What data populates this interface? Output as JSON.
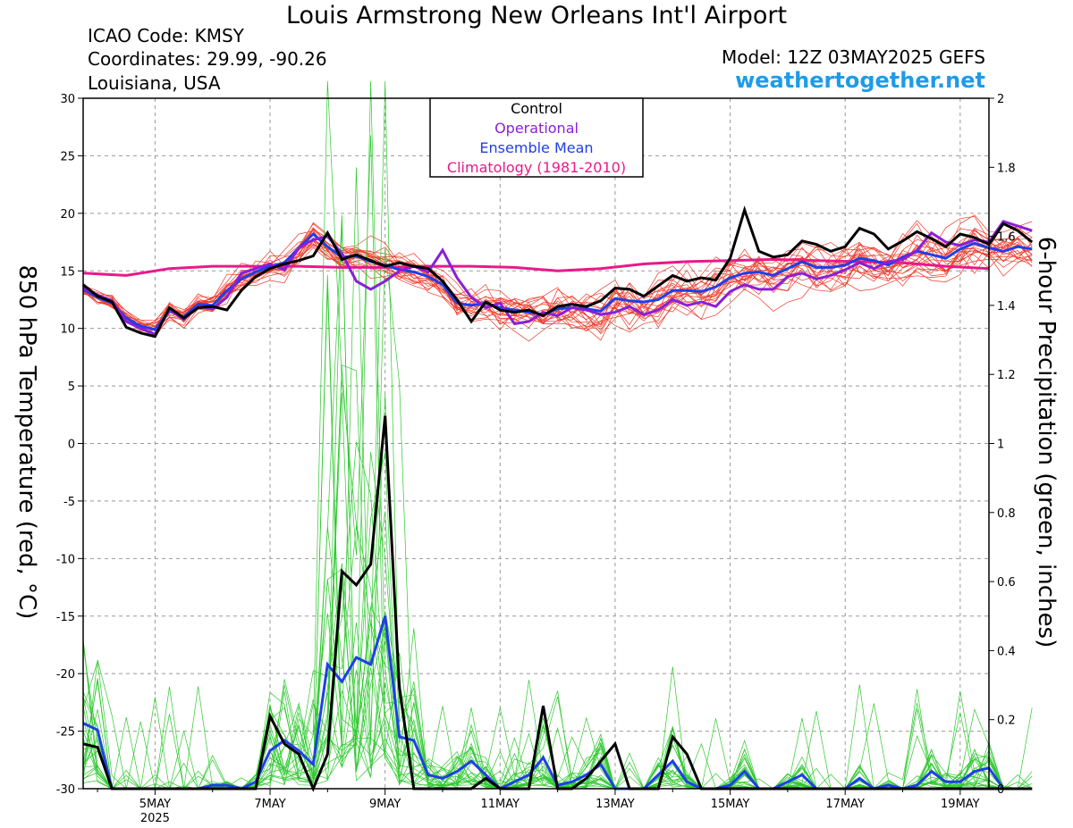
{
  "header": {
    "title": "Louis Armstrong New Orleans Int'l Airport",
    "icao": "ICAO Code: KMSY",
    "coordinates": "Coordinates: 29.99, -90.26",
    "region": "Louisiana, USA",
    "model": "Model: 12Z 03MAY2025 GEFS",
    "site": "weathertogether.net",
    "site_color": "#1e9be8"
  },
  "chart_data": {
    "type": "line",
    "ylabel": "850 hPa Temperature (red, °C)",
    "y2label": "6-hour Precipitation (green, inches)",
    "ylim": [
      -30,
      30
    ],
    "yticks": [
      30,
      25,
      20,
      15,
      10,
      5,
      0,
      -5,
      -10,
      -15,
      -20,
      -25,
      -30
    ],
    "y2lim": [
      0,
      2
    ],
    "y2ticks": [
      "2",
      "1.8",
      "1.6",
      "1.4",
      "1.2",
      "1",
      "0.8",
      "0.6",
      "0.4",
      "0.2",
      "0"
    ],
    "xlim_day": [
      3.75,
      19.5
    ],
    "xticks": [
      {
        "day": 5,
        "label": "5MAY",
        "sub": "2025"
      },
      {
        "day": 7,
        "label": "7MAY",
        "sub": ""
      },
      {
        "day": 9,
        "label": "9MAY",
        "sub": ""
      },
      {
        "day": 11,
        "label": "11MAY",
        "sub": ""
      },
      {
        "day": 13,
        "label": "13MAY",
        "sub": ""
      },
      {
        "day": 15,
        "label": "15MAY",
        "sub": ""
      },
      {
        "day": 17,
        "label": "17MAY",
        "sub": ""
      },
      {
        "day": 19,
        "label": "19MAY",
        "sub": ""
      }
    ],
    "legend": {
      "placement": "top-center",
      "entries": [
        {
          "label": "Control",
          "color": "#000000"
        },
        {
          "label": "Operational",
          "color": "#8a1fd8"
        },
        {
          "label": "Ensemble Mean",
          "color": "#1f3fe8"
        },
        {
          "label": "Climatology (1981-2010)",
          "color": "#e81a8a"
        }
      ]
    },
    "colors": {
      "members_temp": "#ee3a2a",
      "members_precip": "#2ec82e",
      "control": "#000000",
      "operational": "#8a1fd8",
      "mean": "#1f3fe8",
      "climatology": "#e81a8a"
    },
    "control_temp": [
      13.8,
      12.8,
      12.3,
      10.1,
      9.6,
      9.3,
      11.8,
      10.9,
      11.8,
      11.9,
      11.6,
      13.3,
      14.5,
      15.2,
      15.6,
      15.9,
      16.3,
      18.3,
      16.0,
      16.4,
      15.9,
      15.4,
      15.7,
      15.4,
      15.2,
      14.1,
      12.5,
      10.6,
      12.3,
      11.6,
      11.4,
      11.6,
      11.1,
      11.9,
      12.1,
      11.9,
      12.4,
      13.5,
      13.4,
      12.8,
      13.7,
      14.6,
      14.1,
      14.4,
      14.2,
      16.1,
      20.3,
      16.7,
      16.2,
      16.4,
      17.6,
      17.3,
      16.7,
      17.1,
      18.7,
      18.2,
      16.9,
      17.6,
      18.4,
      17.8,
      17.1,
      18.2,
      17.9,
      17.3,
      19.1,
      18.5,
      17.5
    ],
    "operational_temp": [
      13.5,
      12.9,
      12.4,
      10.6,
      10.0,
      9.5,
      11.6,
      10.8,
      11.9,
      11.7,
      12.7,
      14.8,
      15.2,
      15.6,
      15.1,
      17.0,
      17.7,
      18.0,
      16.5,
      14.1,
      13.4,
      14.1,
      15.0,
      15.4,
      14.9,
      16.8,
      14.4,
      12.7,
      11.8,
      12.2,
      10.4,
      10.6,
      11.4,
      11.1,
      11.8,
      11.6,
      11.2,
      11.4,
      11.9,
      11.2,
      11.6,
      12.5,
      12.0,
      12.3,
      11.9,
      13.2,
      13.8,
      13.4,
      13.4,
      14.5,
      14.8,
      14.3,
      14.6,
      15.1,
      15.7,
      15.2,
      15.8,
      16.0,
      16.8,
      18.3,
      17.5,
      17.2,
      17.7,
      17.5,
      19.3,
      18.9,
      18.5
    ],
    "mean_temp": [
      13.4,
      12.7,
      12.2,
      10.9,
      10.2,
      9.9,
      11.5,
      11.0,
      12.1,
      12.0,
      13.3,
      14.3,
      14.9,
      15.4,
      15.7,
      17.0,
      18.2,
      17.1,
      16.2,
      16.3,
      15.8,
      15.5,
      15.1,
      14.9,
      14.5,
      13.8,
      12.2,
      12.0,
      12.2,
      11.8,
      11.6,
      11.4,
      11.2,
      11.7,
      11.8,
      11.7,
      11.5,
      12.6,
      12.4,
      12.3,
      12.5,
      13.3,
      13.3,
      13.2,
      13.6,
      14.4,
      14.8,
      14.9,
      14.6,
      15.2,
      15.8,
      15.3,
      15.3,
      15.5,
      16.1,
      15.9,
      15.5,
      16.2,
      16.7,
      16.4,
      16.1,
      16.9,
      17.4,
      17.0,
      16.7,
      17.1,
      16.9
    ],
    "climatology_temp": [
      [
        3.75,
        14.8
      ],
      [
        4.5,
        14.6
      ],
      [
        5.25,
        15.2
      ],
      [
        6.0,
        15.4
      ],
      [
        6.75,
        15.4
      ],
      [
        7.5,
        15.4
      ],
      [
        8.25,
        15.3
      ],
      [
        9.0,
        15.3
      ],
      [
        9.75,
        15.4
      ],
      [
        10.5,
        15.4
      ],
      [
        11.25,
        15.3
      ],
      [
        12.0,
        15.0
      ],
      [
        12.75,
        15.2
      ],
      [
        13.5,
        15.6
      ],
      [
        14.25,
        15.8
      ],
      [
        15.0,
        15.9
      ],
      [
        15.75,
        16.0
      ],
      [
        16.5,
        15.9
      ],
      [
        17.25,
        15.8
      ],
      [
        18.0,
        15.7
      ],
      [
        18.75,
        15.4
      ],
      [
        19.5,
        15.2
      ]
    ],
    "control_precip": [
      0.13,
      0.12,
      0.0,
      0.0,
      0.0,
      0.0,
      0.0,
      0.0,
      0.0,
      0.0,
      0.0,
      0.0,
      0.0,
      0.21,
      0.13,
      0.1,
      0.0,
      0.1,
      0.63,
      0.59,
      0.65,
      1.08,
      0.29,
      0.0,
      0.0,
      0.0,
      0.0,
      0.0,
      0.03,
      0.0,
      0.0,
      0.0,
      0.24,
      0.0,
      0.0,
      0.03,
      0.08,
      0.13,
      0.0,
      0.0,
      0.0,
      0.15,
      0.1,
      0.0,
      0.0,
      0.0,
      0.0,
      0.0,
      0.0,
      0.0,
      0.0,
      0.0,
      0.0,
      0.0,
      0.0,
      0.0,
      0.0,
      0.0,
      0.0,
      0.0,
      0.0,
      0.0,
      0.0,
      0.0,
      0.0,
      0.0,
      0.0
    ],
    "mean_precip": [
      0.19,
      0.17,
      0.0,
      0.0,
      0.0,
      0.0,
      0.0,
      0.0,
      0.0,
      0.01,
      0.01,
      0.0,
      0.02,
      0.11,
      0.14,
      0.11,
      0.07,
      0.36,
      0.31,
      0.38,
      0.36,
      0.5,
      0.15,
      0.14,
      0.04,
      0.03,
      0.05,
      0.08,
      0.04,
      0.0,
      0.02,
      0.04,
      0.09,
      0.01,
      0.02,
      0.04,
      0.07,
      0.0,
      0.0,
      0.0,
      0.04,
      0.08,
      0.02,
      0.0,
      0.0,
      0.01,
      0.05,
      0.0,
      0.0,
      0.02,
      0.04,
      0.0,
      0.0,
      0.0,
      0.03,
      0.0,
      0.01,
      0.0,
      0.01,
      0.05,
      0.02,
      0.02,
      0.05,
      0.06,
      0.0,
      0.0,
      0.0
    ]
  }
}
